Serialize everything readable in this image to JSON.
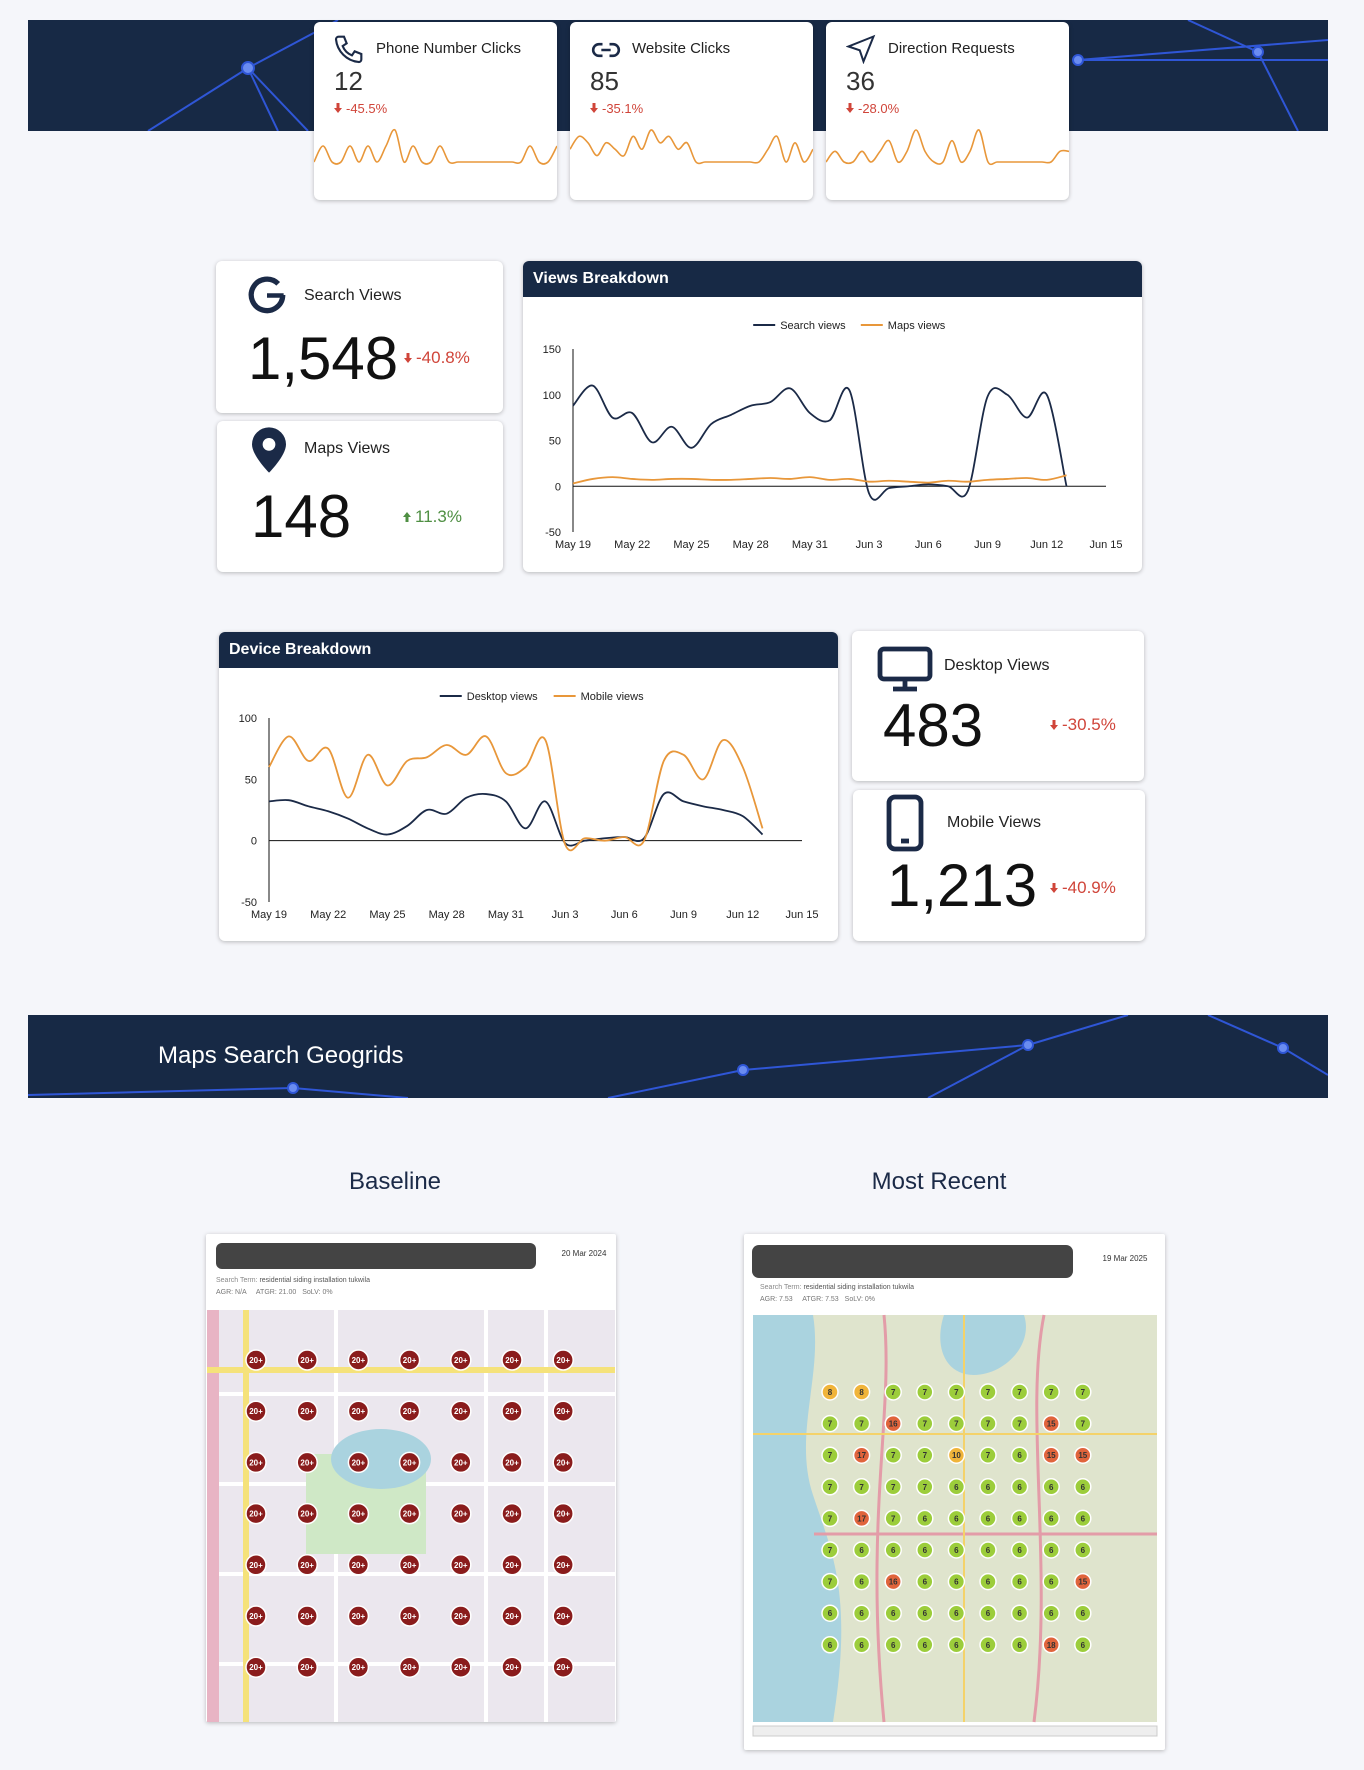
{
  "kpis": [
    {
      "label": "Phone Number Clicks",
      "value": "12",
      "change": "-45.5%",
      "sparkline": [
        0,
        1,
        0,
        0,
        1,
        0,
        1,
        0,
        1,
        2,
        0,
        1,
        0,
        0,
        1,
        0,
        0,
        0,
        0,
        0,
        0,
        0,
        0,
        0,
        1,
        0,
        0,
        1
      ]
    },
    {
      "label": "Website Clicks",
      "value": "85",
      "change": "-35.1%",
      "sparkline": [
        3,
        5,
        4,
        2,
        4,
        3,
        2,
        5,
        3,
        6,
        4,
        5,
        3,
        4,
        1,
        1,
        1,
        1,
        1,
        1,
        1,
        1,
        3,
        5,
        1,
        4,
        1,
        3
      ]
    },
    {
      "label": "Direction Requests",
      "value": "36",
      "change": "-28.0%",
      "sparkline": [
        0,
        1,
        0,
        0,
        1,
        0,
        1,
        2,
        0,
        1,
        3,
        1,
        0,
        0,
        2,
        0,
        1,
        3,
        0,
        0,
        0,
        0,
        0,
        0,
        0,
        0,
        1,
        1
      ]
    }
  ],
  "sparkline_color": "#e8973a",
  "stat_cards": [
    {
      "label": "Search Views",
      "value": "1,548",
      "change": "-40.8%"
    },
    {
      "label": "Maps Views",
      "value": "148",
      "change": "11.3%"
    },
    {
      "label": "Desktop Views",
      "value": "483",
      "change": "-30.5%"
    },
    {
      "label": "Mobile Views",
      "value": "1,213",
      "change": "-40.9%"
    }
  ],
  "chart_data": [
    {
      "type": "line",
      "title": "Views Breakdown",
      "categories": [
        "May 19",
        null,
        null,
        "May 22",
        null,
        null,
        "May 25",
        null,
        null,
        "May 28",
        null,
        null,
        "May 31",
        null,
        null,
        "Jun 3",
        null,
        null,
        "Jun 6",
        null,
        null,
        "Jun 9",
        null,
        null,
        "Jun 12",
        null,
        null,
        "Jun 15"
      ],
      "series": [
        {
          "name": "Search views",
          "color": "#1b2a47",
          "values": [
            88,
            110,
            75,
            80,
            48,
            65,
            42,
            68,
            78,
            88,
            92,
            107,
            80,
            72,
            105,
            -8,
            -2,
            0,
            2,
            0,
            -5,
            98,
            100,
            75,
            100,
            0,
            null,
            null
          ]
        },
        {
          "name": "Maps views",
          "color": "#e8973a",
          "values": [
            3,
            8,
            10,
            8,
            7,
            8,
            8,
            7,
            7,
            8,
            9,
            8,
            10,
            7,
            8,
            5,
            6,
            5,
            4,
            6,
            5,
            7,
            8,
            9,
            7,
            12,
            null,
            null
          ]
        }
      ],
      "ylim": [
        -50,
        150
      ],
      "yticks": [
        -50,
        0,
        50,
        100,
        150
      ],
      "grid": false,
      "legend": "top"
    },
    {
      "type": "line",
      "title": "Device Breakdown",
      "categories": [
        "May 19",
        null,
        null,
        "May 22",
        null,
        null,
        "May 25",
        null,
        null,
        "May 28",
        null,
        null,
        "May 31",
        null,
        null,
        "Jun 3",
        null,
        null,
        "Jun 6",
        null,
        null,
        "Jun 9",
        null,
        null,
        "Jun 12",
        null,
        null,
        "Jun 15"
      ],
      "series": [
        {
          "name": "Desktop views",
          "color": "#1b2a47",
          "values": [
            32,
            33,
            28,
            24,
            18,
            10,
            5,
            12,
            25,
            22,
            35,
            38,
            32,
            10,
            32,
            -2,
            0,
            2,
            3,
            2,
            38,
            32,
            28,
            25,
            20,
            5,
            null,
            null
          ]
        },
        {
          "name": "Mobile views",
          "color": "#e8973a",
          "values": [
            60,
            85,
            65,
            75,
            35,
            70,
            45,
            65,
            68,
            78,
            70,
            85,
            55,
            60,
            82,
            -3,
            2,
            0,
            3,
            0,
            65,
            70,
            50,
            82,
            60,
            10,
            null,
            null
          ]
        }
      ],
      "ylim": [
        -50,
        100
      ],
      "yticks": [
        -50,
        0,
        50,
        100
      ],
      "grid": false,
      "legend": "top"
    }
  ],
  "geogrid_section": {
    "title": "Maps Search Geogrids",
    "panels": [
      {
        "heading": "Baseline",
        "date": "20 Mar 2024",
        "search_term_label": "Search Term:",
        "search_term": "residential siding installation tukwila",
        "metrics": [
          "AGR: N/A",
          "ATGR: 21.00",
          "SoLV: 0%"
        ],
        "grid": [
          [
            "20+",
            "20+",
            "20+",
            "20+",
            "20+",
            "20+",
            "20+"
          ],
          [
            "20+",
            "20+",
            "20+",
            "20+",
            "20+",
            "20+",
            "20+"
          ],
          [
            "20+",
            "20+",
            "20+",
            "20+",
            "20+",
            "20+",
            "20+"
          ],
          [
            "20+",
            "20+",
            "20+",
            "20+",
            "20+",
            "20+",
            "20+"
          ],
          [
            "20+",
            "20+",
            "20+",
            "20+",
            "20+",
            "20+",
            "20+"
          ],
          [
            "20+",
            "20+",
            "20+",
            "20+",
            "20+",
            "20+",
            "20+"
          ],
          [
            "20+",
            "20+",
            "20+",
            "20+",
            "20+",
            "20+",
            "20+"
          ]
        ]
      },
      {
        "heading": "Most Recent",
        "date": "19 Mar 2025",
        "search_term_label": "Search Term:",
        "search_term": "residential siding installation tukwila",
        "metrics": [
          "AGR: 7.53",
          "ATGR: 7.53",
          "SoLV: 0%"
        ],
        "grid": [
          [
            8,
            8,
            7,
            7,
            7,
            7,
            7,
            7,
            7
          ],
          [
            7,
            7,
            16,
            7,
            7,
            7,
            7,
            15,
            7
          ],
          [
            7,
            17,
            7,
            7,
            10,
            7,
            6,
            15,
            15
          ],
          [
            7,
            7,
            7,
            7,
            6,
            6,
            6,
            6,
            6
          ],
          [
            7,
            17,
            7,
            6,
            6,
            6,
            6,
            6,
            6
          ],
          [
            7,
            6,
            6,
            6,
            6,
            6,
            6,
            6,
            6
          ],
          [
            7,
            6,
            16,
            6,
            6,
            6,
            6,
            6,
            15
          ],
          [
            6,
            6,
            6,
            6,
            6,
            6,
            6,
            6,
            6
          ],
          [
            6,
            6,
            6,
            6,
            6,
            6,
            6,
            18,
            6
          ]
        ]
      }
    ]
  }
}
